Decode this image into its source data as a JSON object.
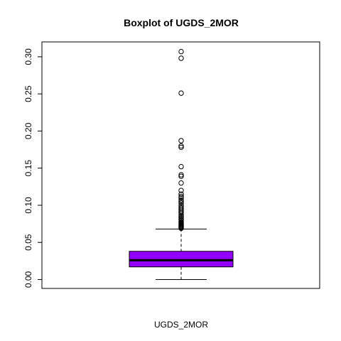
{
  "chart_data": {
    "type": "boxplot",
    "title": "Boxplot of UGDS_2MOR",
    "xlabel": "UGDS_2MOR",
    "ylabel": "",
    "ylim": [
      -0.012,
      0.32
    ],
    "y_ticks": [
      0.0,
      0.05,
      0.1,
      0.15,
      0.2,
      0.25,
      0.3
    ],
    "y_tick_labels": [
      "0.00",
      "0.05",
      "0.10",
      "0.15",
      "0.20",
      "0.25",
      "0.30"
    ],
    "box_color": "#9400FF",
    "box": {
      "whisker_low": 0.0,
      "q1": 0.017,
      "median": 0.026,
      "q3": 0.038,
      "whisker_high": 0.068
    },
    "outliers": [
      0.307,
      0.298,
      0.251,
      0.187,
      0.18,
      0.178,
      0.152,
      0.141,
      0.139,
      0.13,
      0.12,
      0.115,
      0.112,
      0.11,
      0.107,
      0.105,
      0.103,
      0.1,
      0.098,
      0.096,
      0.094,
      0.092,
      0.09,
      0.088,
      0.086,
      0.085,
      0.083,
      0.081,
      0.08,
      0.078,
      0.077,
      0.076,
      0.075,
      0.074,
      0.073,
      0.072,
      0.071,
      0.07,
      0.069
    ]
  }
}
